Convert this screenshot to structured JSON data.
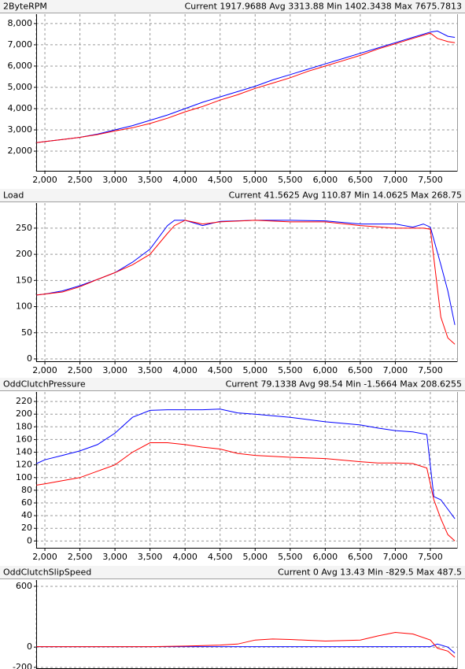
{
  "chart_data": [
    {
      "type": "line",
      "title": "2ByteRPM",
      "subtitle": "Current 1917.9688 Avg 3313.88 Min 1402.3438 Max 7675.7813",
      "x": [
        1880,
        2000,
        2250,
        2500,
        2750,
        3000,
        3250,
        3500,
        3750,
        4000,
        4250,
        4500,
        4750,
        5000,
        5250,
        5500,
        5750,
        6000,
        6250,
        6500,
        6750,
        7000,
        7250,
        7500,
        7600,
        7750,
        7850
      ],
      "series": [
        {
          "color": "#0000ff",
          "values": [
            2400,
            2450,
            2550,
            2650,
            2800,
            3000,
            3200,
            3450,
            3700,
            4000,
            4300,
            4550,
            4800,
            5050,
            5350,
            5600,
            5850,
            6100,
            6350,
            6600,
            6850,
            7100,
            7350,
            7600,
            7650,
            7400,
            7350
          ]
        },
        {
          "color": "#ff0000",
          "values": [
            2400,
            2450,
            2550,
            2650,
            2780,
            2950,
            3100,
            3300,
            3550,
            3850,
            4100,
            4400,
            4650,
            4950,
            5200,
            5450,
            5750,
            6000,
            6250,
            6500,
            6800,
            7050,
            7300,
            7550,
            7300,
            7150,
            7100
          ]
        }
      ],
      "xlim": [
        1876,
        7882
      ],
      "ylim": [
        1040,
        8440
      ],
      "xticks": [
        {
          "value": 2000,
          "label": "2,000"
        },
        {
          "value": 2500,
          "label": "2,500"
        },
        {
          "value": 3000,
          "label": "3,000"
        },
        {
          "value": 3500,
          "label": "3,500"
        },
        {
          "value": 4000,
          "label": "4,000"
        },
        {
          "value": 4500,
          "label": "4,500"
        },
        {
          "value": 5000,
          "label": "5,000"
        },
        {
          "value": 5500,
          "label": "5,500"
        },
        {
          "value": 6000,
          "label": "6,000"
        },
        {
          "value": 6500,
          "label": "6,500"
        },
        {
          "value": 7000,
          "label": "7,000"
        },
        {
          "value": 7500,
          "label": "7,500"
        }
      ],
      "yticks": [
        {
          "value": 2000,
          "label": "2,000"
        },
        {
          "value": 3000,
          "label": "3,000"
        },
        {
          "value": 4000,
          "label": "4,000"
        },
        {
          "value": 5000,
          "label": "5,000"
        },
        {
          "value": 6000,
          "label": "6,000"
        },
        {
          "value": 7000,
          "label": "7,000"
        },
        {
          "value": 8000,
          "label": "8,000"
        }
      ],
      "grid": true
    },
    {
      "type": "line",
      "title": "Load",
      "subtitle": "Current 41.5625 Avg 110.87 Min 14.0625 Max 268.75",
      "x": [
        1880,
        2000,
        2250,
        2500,
        2750,
        3000,
        3250,
        3500,
        3750,
        3850,
        4000,
        4250,
        4500,
        5000,
        5500,
        6000,
        6500,
        7000,
        7250,
        7400,
        7500,
        7650,
        7750,
        7850
      ],
      "series": [
        {
          "color": "#0000ff",
          "values": [
            122,
            124,
            130,
            140,
            152,
            165,
            185,
            210,
            255,
            265,
            265,
            255,
            263,
            265,
            265,
            264,
            258,
            258,
            252,
            258,
            252,
            180,
            130,
            65
          ]
        },
        {
          "color": "#ff0000",
          "values": [
            122,
            124,
            128,
            138,
            152,
            165,
            180,
            200,
            240,
            255,
            265,
            258,
            262,
            265,
            262,
            262,
            255,
            250,
            250,
            250,
            248,
            80,
            40,
            28
          ]
        }
      ],
      "xlim": [
        1876,
        7882
      ],
      "ylim": [
        -6,
        298
      ],
      "xticks": [
        {
          "value": 2000,
          "label": "2,000"
        },
        {
          "value": 2500,
          "label": "2,500"
        },
        {
          "value": 3000,
          "label": "3,000"
        },
        {
          "value": 3500,
          "label": "3,500"
        },
        {
          "value": 4000,
          "label": "4,000"
        },
        {
          "value": 4500,
          "label": "4,500"
        },
        {
          "value": 5000,
          "label": "5,000"
        },
        {
          "value": 5500,
          "label": "5,500"
        },
        {
          "value": 6000,
          "label": "6,000"
        },
        {
          "value": 6500,
          "label": "6,500"
        },
        {
          "value": 7000,
          "label": "7,000"
        },
        {
          "value": 7500,
          "label": "7,500"
        }
      ],
      "yticks": [
        0,
        50,
        100,
        150,
        200,
        250
      ],
      "grid": true
    },
    {
      "type": "line",
      "title": "OddClutchPressure",
      "subtitle": "Current 79.1338 Avg 98.54 Min -1.5664 Max 208.6255",
      "x": [
        1880,
        2000,
        2250,
        2500,
        2750,
        3000,
        3250,
        3500,
        3750,
        4000,
        4250,
        4500,
        4750,
        5000,
        5500,
        6000,
        6500,
        6750,
        7000,
        7250,
        7450,
        7550,
        7650,
        7750,
        7850
      ],
      "series": [
        {
          "color": "#0000ff",
          "values": [
            122,
            128,
            135,
            142,
            152,
            170,
            195,
            206,
            207,
            207,
            207,
            208,
            202,
            200,
            195,
            188,
            183,
            178,
            174,
            172,
            168,
            70,
            65,
            50,
            35
          ]
        },
        {
          "color": "#ff0000",
          "values": [
            88,
            90,
            95,
            100,
            110,
            120,
            140,
            155,
            155,
            152,
            148,
            145,
            138,
            135,
            132,
            130,
            125,
            123,
            123,
            122,
            115,
            65,
            35,
            10,
            0
          ]
        }
      ],
      "xlim": [
        1876,
        7882
      ],
      "ylim": [
        -12,
        235
      ],
      "xticks": [
        {
          "value": 2000,
          "label": "2,000"
        },
        {
          "value": 2500,
          "label": "2,500"
        },
        {
          "value": 3000,
          "label": "3,000"
        },
        {
          "value": 3500,
          "label": "3,500"
        },
        {
          "value": 4000,
          "label": "4,000"
        },
        {
          "value": 4500,
          "label": "4,500"
        },
        {
          "value": 5000,
          "label": "5,000"
        },
        {
          "value": 5500,
          "label": "5,500"
        },
        {
          "value": 6000,
          "label": "6,000"
        },
        {
          "value": 6500,
          "label": "6,500"
        },
        {
          "value": 7000,
          "label": "7,000"
        },
        {
          "value": 7500,
          "label": "7,500"
        }
      ],
      "yticks": [
        0,
        20,
        40,
        60,
        80,
        100,
        120,
        140,
        160,
        180,
        200,
        220
      ],
      "grid": true
    },
    {
      "type": "line",
      "title": "OddClutchSlipSpeed",
      "subtitle": "Current 0 Avg 13.43 Min -829.5 Max 487.5",
      "x": [
        1880,
        2000,
        2500,
        3000,
        3500,
        4000,
        4500,
        4750,
        5000,
        5250,
        5500,
        6000,
        6500,
        6750,
        7000,
        7250,
        7500,
        7600,
        7750,
        7850
      ],
      "series": [
        {
          "color": "#0000ff",
          "values": [
            5,
            5,
            5,
            5,
            5,
            5,
            5,
            5,
            5,
            5,
            5,
            5,
            5,
            5,
            5,
            5,
            5,
            30,
            0,
            -60
          ]
        },
        {
          "color": "#ff0000",
          "values": [
            5,
            5,
            5,
            5,
            5,
            10,
            20,
            30,
            70,
            80,
            75,
            60,
            70,
            110,
            145,
            130,
            70,
            -10,
            -40,
            -100
          ]
        }
      ],
      "xlim": [
        1876,
        7882
      ],
      "ylim": [
        -216,
        662
      ],
      "yticks": [
        -200,
        0,
        600
      ],
      "grid": true
    }
  ]
}
